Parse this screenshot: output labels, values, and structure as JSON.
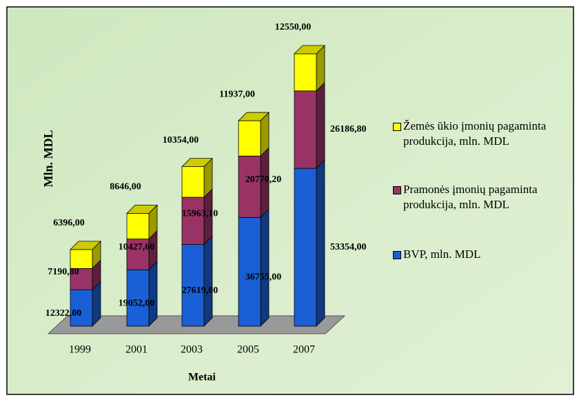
{
  "chart_data": {
    "type": "bar3d_stacked",
    "x_label": "Metai",
    "y_label": "Mln. MDL",
    "categories": [
      "1999",
      "2001",
      "2003",
      "2005",
      "2007"
    ],
    "series": [
      {
        "name": "BVP, mln. MDL",
        "color": "#1a5fd6",
        "values": [
          12322,
          19052,
          27619,
          36755,
          53354
        ],
        "value_labels": [
          "12322,00",
          "19052,00",
          "27619,00",
          "36755,00",
          "53354,00"
        ]
      },
      {
        "name": "Pramonės įmonių pagaminta produkcija, mln. MDL",
        "color": "#993366",
        "values": [
          7190.8,
          10427.6,
          15963.1,
          20770.2,
          26186.8
        ],
        "value_labels": [
          "7190,80",
          "10427,60",
          "15963,10",
          "20770,20",
          "26186,80"
        ]
      },
      {
        "name": "Žemės ūkio įmonių pagaminta produkcija, mln. MDL",
        "color": "#ffff00",
        "values": [
          6396,
          8646,
          10354,
          11937,
          12550
        ],
        "value_labels": [
          "6396,00",
          "8646,00",
          "10354,00",
          "11937,00",
          "12550,00"
        ]
      }
    ],
    "legend": "right"
  }
}
